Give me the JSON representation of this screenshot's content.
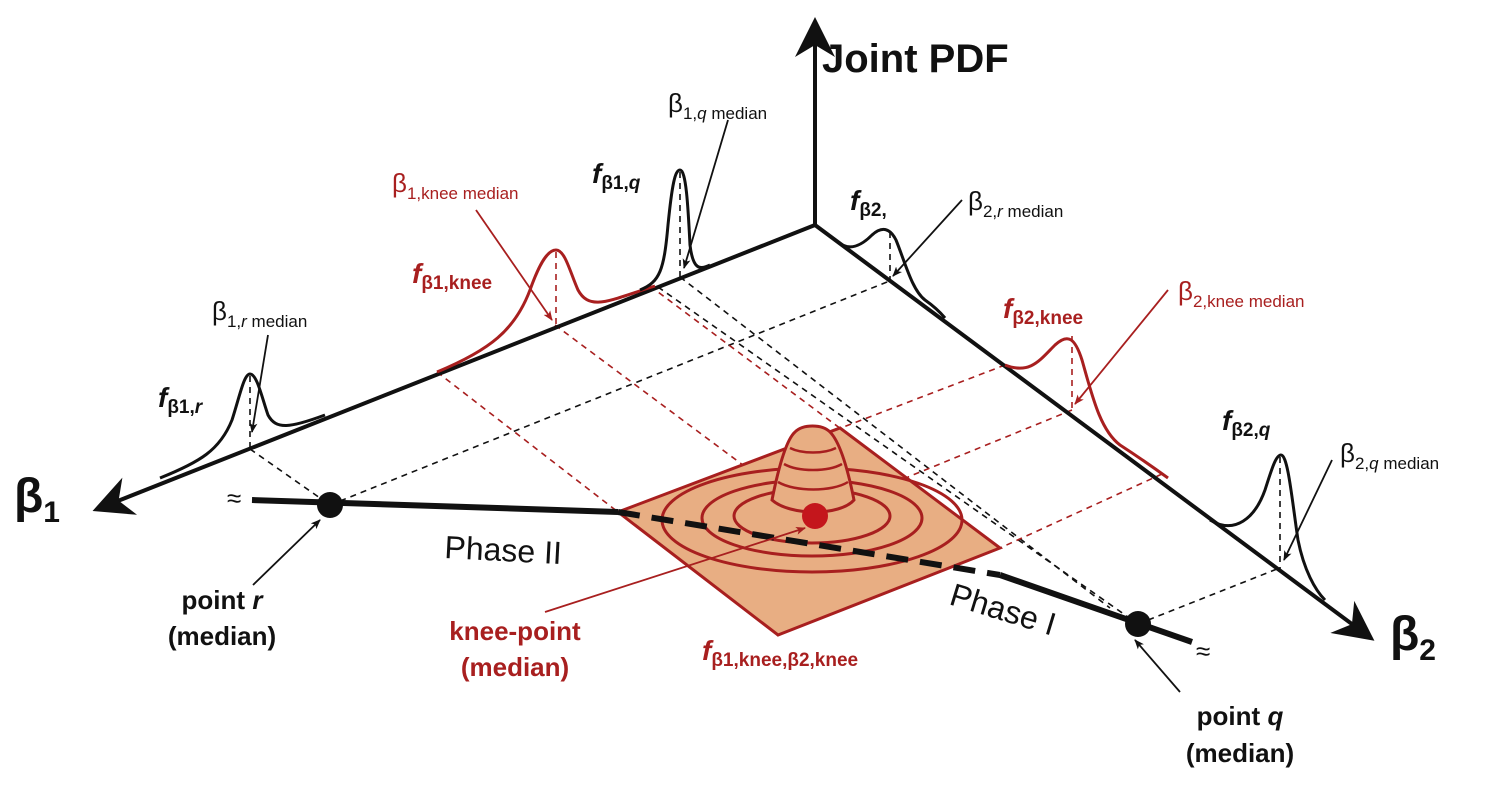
{
  "colors": {
    "black": "#111111",
    "red": "#a81f1f",
    "fill_orange": "#e8ae83",
    "red_dot": "#c4161c"
  },
  "axes": {
    "vertical_label": "Joint PDF",
    "beta1": {
      "symbol": "β",
      "subscript": "1"
    },
    "beta2": {
      "symbol": "β",
      "subscript": "2"
    }
  },
  "pdf_labels": {
    "f_b1_r": {
      "f": "f",
      "sub": "β1,",
      "sub_italic": "r"
    },
    "f_b1_knee": {
      "f": "f",
      "sub": "β1,knee"
    },
    "f_b1_q": {
      "f": "f",
      "sub": "β1,",
      "sub_italic": "q"
    },
    "f_b2_r": {
      "f": "f",
      "sub": "β2,"
    },
    "f_b2_knee": {
      "f": "f",
      "sub": "β2,knee"
    },
    "f_b2_q": {
      "f": "f",
      "sub": "β2,",
      "sub_italic": "q"
    },
    "f_joint": {
      "f": "f",
      "sub": "β1,knee,β2,knee"
    }
  },
  "median_labels": {
    "b1_r_median": {
      "beta": "β",
      "sub": "1,",
      "sub_italic": "r",
      "suffix": " median"
    },
    "b1_q_median": {
      "beta": "β",
      "sub": "1,",
      "sub_italic": "q",
      "suffix": " median"
    },
    "b1_knee_median": {
      "beta": "β",
      "sub": "1,knee median"
    },
    "b2_r_median": {
      "beta": "β",
      "sub": "2,",
      "sub_italic": "r",
      "suffix": " median"
    },
    "b2_knee_median": {
      "beta": "β",
      "sub": "2,knee median"
    },
    "b2_q_median": {
      "beta": "β",
      "sub": "2,",
      "sub_italic": "q",
      "suffix": " median"
    }
  },
  "phases": {
    "phase_ii": "Phase II",
    "phase_i": "Phase I",
    "break_mark": "≈"
  },
  "points": {
    "point_r": {
      "line1_prefix": "point ",
      "line1_italic": "r",
      "line2": "(median)"
    },
    "knee": {
      "line1": "knee-point",
      "line2": "(median)"
    },
    "point_q": {
      "line1_prefix": "point ",
      "line1_italic": "q",
      "line2": "(median)"
    }
  }
}
